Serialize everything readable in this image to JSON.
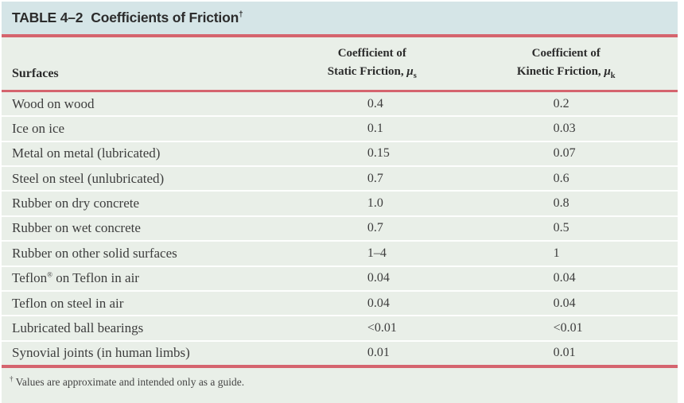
{
  "title": {
    "label": "TABLE 4–2",
    "text": "Coefficients of Friction",
    "superscript": "†"
  },
  "header": {
    "surfaces": "Surfaces",
    "static": {
      "line1": "Coefficient of",
      "line2": "Static Friction, ",
      "symbol": "μ",
      "subscript": "s"
    },
    "kinetic": {
      "line1": "Coefficient of",
      "line2": "Kinetic Friction, ",
      "symbol": "μ",
      "subscript": "k"
    }
  },
  "rows": [
    {
      "surface": "Wood on wood",
      "surface_sup": "",
      "surface_rest": "",
      "static": "0.4",
      "kinetic": "0.2"
    },
    {
      "surface": "Ice on ice",
      "surface_sup": "",
      "surface_rest": "",
      "static": "0.1",
      "kinetic": "0.03"
    },
    {
      "surface": "Metal on metal (lubricated)",
      "surface_sup": "",
      "surface_rest": "",
      "static": "0.15",
      "kinetic": "0.07"
    },
    {
      "surface": "Steel on steel (unlubricated)",
      "surface_sup": "",
      "surface_rest": "",
      "static": "0.7",
      "kinetic": "0.6"
    },
    {
      "surface": "Rubber on dry concrete",
      "surface_sup": "",
      "surface_rest": "",
      "static": "1.0",
      "kinetic": "0.8"
    },
    {
      "surface": "Rubber on wet concrete",
      "surface_sup": "",
      "surface_rest": "",
      "static": "0.7",
      "kinetic": "0.5"
    },
    {
      "surface": "Rubber on other solid surfaces",
      "surface_sup": "",
      "surface_rest": "",
      "static": "1–4",
      "kinetic": "1"
    },
    {
      "surface": "Teflon",
      "surface_sup": "®",
      "surface_rest": " on Teflon in air",
      "static": "0.04",
      "kinetic": "0.04"
    },
    {
      "surface": "Teflon on steel in air",
      "surface_sup": "",
      "surface_rest": "",
      "static": "0.04",
      "kinetic": "0.04"
    },
    {
      "surface": "Lubricated ball bearings",
      "surface_sup": "",
      "surface_rest": "",
      "static": "<0.01",
      "kinetic": "<0.01"
    },
    {
      "surface": "Synovial joints (in human limbs)",
      "surface_sup": "",
      "surface_rest": "",
      "static": "0.01",
      "kinetic": "0.01"
    }
  ],
  "footnote": {
    "marker": "†",
    "text": "Values are approximate and intended only as a guide."
  },
  "colors": {
    "title_bar_bg": "#d5e5e7",
    "body_bg": "#e9efe8",
    "rule_red": "#d5646e",
    "row_separator": "#fdfefd",
    "text_dark": "#2c2c2c",
    "text_body": "#3d3d3d"
  },
  "chart_data": {
    "type": "table",
    "title": "TABLE 4–2 Coefficients of Friction†",
    "columns": [
      "Surfaces",
      "Coefficient of Static Friction, μs",
      "Coefficient of Kinetic Friction, μk"
    ],
    "rows": [
      [
        "Wood on wood",
        "0.4",
        "0.2"
      ],
      [
        "Ice on ice",
        "0.1",
        "0.03"
      ],
      [
        "Metal on metal (lubricated)",
        "0.15",
        "0.07"
      ],
      [
        "Steel on steel (unlubricated)",
        "0.7",
        "0.6"
      ],
      [
        "Rubber on dry concrete",
        "1.0",
        "0.8"
      ],
      [
        "Rubber on wet concrete",
        "0.7",
        "0.5"
      ],
      [
        "Rubber on other solid surfaces",
        "1–4",
        "1"
      ],
      [
        "Teflon® on Teflon in air",
        "0.04",
        "0.04"
      ],
      [
        "Teflon on steel in air",
        "0.04",
        "0.04"
      ],
      [
        "Lubricated ball bearings",
        "<0.01",
        "<0.01"
      ],
      [
        "Synovial joints (in human limbs)",
        "0.01",
        "0.01"
      ]
    ],
    "footnote": "† Values are approximate and intended only as a guide."
  }
}
